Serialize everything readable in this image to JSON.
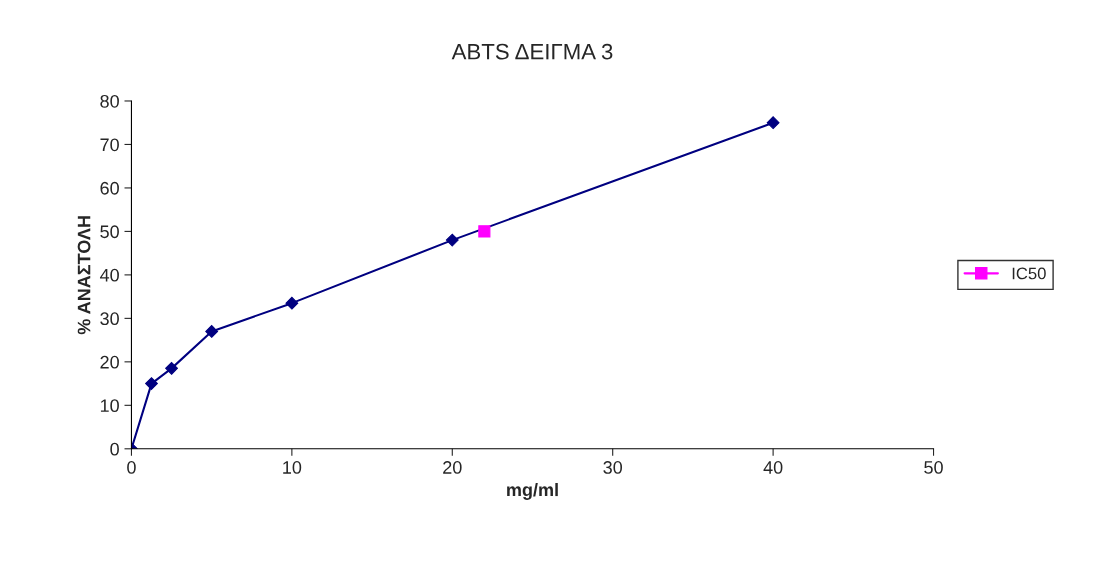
{
  "chart_data": {
    "type": "line",
    "title": "ABTS ΔΕΙΓΜΑ 3",
    "xlabel": "mg/ml",
    "ylabel": "% ΑΝΑΣΤΟΛΗ",
    "xlim": [
      0,
      50
    ],
    "xticks": [
      0,
      10,
      20,
      30,
      40,
      50
    ],
    "ylim": [
      0,
      80
    ],
    "yticks": [
      0,
      10,
      20,
      30,
      40,
      50,
      60,
      70,
      80
    ],
    "grid": false,
    "legend": "right",
    "series": [
      {
        "color": "#000080",
        "marker": "diamond",
        "x": [
          0,
          1.25,
          2.5,
          5,
          10,
          20,
          40
        ],
        "values": [
          0,
          15,
          18.5,
          27,
          33.5,
          48,
          75
        ]
      },
      {
        "name": "IC50",
        "color": "#ff00ff",
        "marker": "square",
        "x": [
          22
        ],
        "values": [
          50
        ]
      }
    ]
  }
}
